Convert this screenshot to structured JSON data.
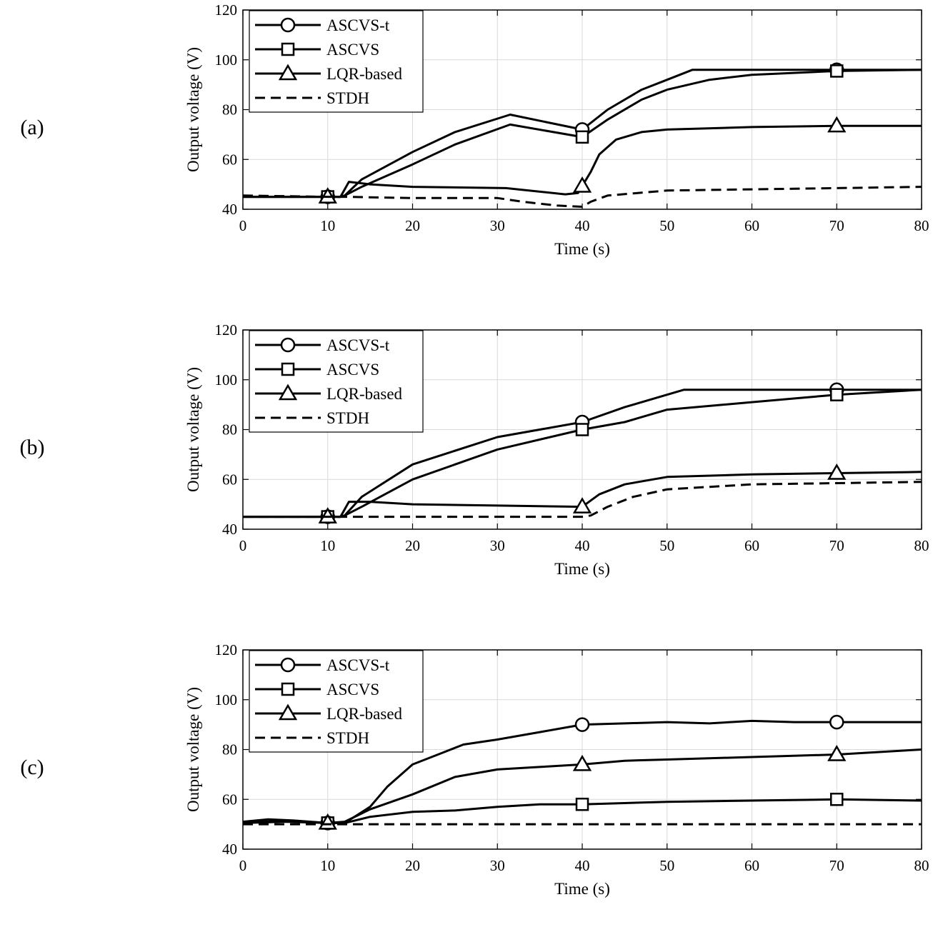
{
  "chart_data": [
    {
      "type": "line",
      "panel_label": "(a)",
      "xlabel": "Time (s)",
      "ylabel": "Output voltage (V)",
      "xlim": [
        0,
        80
      ],
      "ylim": [
        40,
        120
      ],
      "xticks": [
        0,
        10,
        20,
        30,
        40,
        50,
        60,
        70,
        80
      ],
      "yticks": [
        40,
        60,
        80,
        100,
        120
      ],
      "grid": true,
      "legend_position": "top-left",
      "series": [
        {
          "name": "ASCVS-t",
          "marker": "circle",
          "style": "solid",
          "x": [
            0,
            10,
            11.5,
            12,
            14,
            20,
            25,
            31.5,
            40,
            43,
            47,
            50,
            53,
            60,
            70,
            80
          ],
          "y": [
            45,
            45,
            45,
            45.5,
            52,
            63,
            71,
            78,
            72,
            80,
            88,
            92,
            96,
            96,
            96,
            96
          ],
          "markers_at": [
            10,
            40,
            70
          ]
        },
        {
          "name": "ASCVS",
          "marker": "square",
          "style": "solid",
          "x": [
            0,
            10,
            11.5,
            12,
            14,
            20,
            25,
            31.5,
            40,
            43,
            47,
            50,
            55,
            60,
            70,
            80
          ],
          "y": [
            45,
            45,
            45,
            45.5,
            49,
            58,
            66,
            74,
            69,
            76,
            84,
            88,
            92,
            94,
            95.5,
            96
          ],
          "markers_at": [
            10,
            40,
            70
          ]
        },
        {
          "name": "LQR-based",
          "marker": "triangle",
          "style": "solid",
          "x": [
            0,
            10,
            11.5,
            12.5,
            15,
            20,
            31,
            38,
            39.5,
            41,
            42,
            44,
            47,
            50,
            60,
            70,
            80
          ],
          "y": [
            45,
            45,
            45,
            51,
            50,
            49,
            48.5,
            46,
            46.5,
            55,
            62,
            68,
            71,
            72,
            73,
            73.5,
            73.5
          ],
          "markers_at": [
            10,
            40,
            70
          ]
        },
        {
          "name": "STDH",
          "marker": "none",
          "style": "dashed",
          "x": [
            0,
            10,
            12,
            20,
            30,
            33,
            37,
            40,
            41,
            43,
            50,
            60,
            70,
            80
          ],
          "y": [
            45.5,
            45,
            45,
            44.5,
            44.5,
            43,
            41.5,
            41,
            43,
            45.5,
            47.5,
            48,
            48.5,
            49
          ],
          "markers_at": []
        }
      ]
    },
    {
      "type": "line",
      "panel_label": "(b)",
      "xlabel": "Time (s)",
      "ylabel": "Output voltage (V)",
      "xlim": [
        0,
        80
      ],
      "ylim": [
        40,
        120
      ],
      "xticks": [
        0,
        10,
        20,
        30,
        40,
        50,
        60,
        70,
        80
      ],
      "yticks": [
        40,
        60,
        80,
        100,
        120
      ],
      "grid": true,
      "legend_position": "top-left",
      "series": [
        {
          "name": "ASCVS-t",
          "marker": "circle",
          "style": "solid",
          "x": [
            0,
            10,
            11.5,
            12,
            14,
            20,
            30,
            40,
            45,
            52,
            60,
            70,
            80
          ],
          "y": [
            45,
            45,
            45,
            45.5,
            53,
            66,
            77,
            83,
            89,
            96,
            96,
            96,
            96
          ],
          "markers_at": [
            10,
            40,
            70
          ]
        },
        {
          "name": "ASCVS",
          "marker": "square",
          "style": "solid",
          "x": [
            0,
            10,
            11.5,
            12,
            14,
            20,
            30,
            40,
            45,
            50,
            60,
            70,
            80
          ],
          "y": [
            45,
            45,
            45,
            45.5,
            49,
            60,
            72,
            80,
            83,
            88,
            91,
            94,
            96
          ],
          "markers_at": [
            10,
            40,
            70
          ]
        },
        {
          "name": "LQR-based",
          "marker": "triangle",
          "style": "solid",
          "x": [
            0,
            10,
            11.5,
            12.5,
            15,
            20,
            30,
            40,
            42,
            45,
            50,
            60,
            70,
            80
          ],
          "y": [
            45,
            45,
            45,
            51,
            51,
            50,
            49.5,
            49,
            54,
            58,
            61,
            62,
            62.5,
            63
          ],
          "markers_at": [
            10,
            40,
            70
          ]
        },
        {
          "name": "STDH",
          "marker": "none",
          "style": "dashed",
          "x": [
            0,
            10,
            12,
            20,
            30,
            40,
            41,
            43,
            46,
            50,
            55,
            60,
            70,
            80
          ],
          "y": [
            45,
            45,
            45,
            45,
            45,
            45,
            45.5,
            49,
            53,
            56,
            57,
            58,
            58.5,
            59
          ],
          "markers_at": []
        }
      ]
    },
    {
      "type": "line",
      "panel_label": "(c)",
      "xlabel": "Time (s)",
      "ylabel": "Output voltage (V)",
      "xlim": [
        0,
        80
      ],
      "ylim": [
        40,
        120
      ],
      "xticks": [
        0,
        10,
        20,
        30,
        40,
        50,
        60,
        70,
        80
      ],
      "yticks": [
        40,
        60,
        80,
        100,
        120
      ],
      "grid": true,
      "legend_position": "top-left",
      "series": [
        {
          "name": "ASCVS-t",
          "marker": "circle",
          "style": "solid",
          "x": [
            0,
            3,
            6,
            10,
            12,
            15,
            17,
            20,
            23,
            26,
            30,
            35,
            40,
            45,
            50,
            55,
            60,
            65,
            70,
            75,
            80
          ],
          "y": [
            51,
            52,
            51.5,
            50.5,
            50.5,
            57,
            65,
            74,
            78,
            82,
            84,
            87,
            90,
            90.5,
            91,
            90.5,
            91.5,
            91,
            91,
            91,
            91
          ],
          "markers_at": [
            10,
            40,
            70
          ]
        },
        {
          "name": "ASCVS",
          "marker": "square",
          "style": "solid",
          "x": [
            0,
            5,
            10,
            12,
            15,
            20,
            25,
            30,
            35,
            40,
            45,
            50,
            60,
            70,
            80
          ],
          "y": [
            50.5,
            51.5,
            50.5,
            50.5,
            53,
            55,
            55.5,
            57,
            58,
            58,
            58.5,
            59,
            59.5,
            60,
            59.5
          ],
          "markers_at": [
            10,
            40,
            70
          ]
        },
        {
          "name": "LQR-based",
          "marker": "triangle",
          "style": "solid",
          "x": [
            0,
            5,
            10,
            12,
            15,
            20,
            25,
            30,
            35,
            40,
            45,
            50,
            60,
            70,
            75,
            80
          ],
          "y": [
            50.5,
            51,
            50.5,
            51,
            56,
            62,
            69,
            72,
            73,
            74,
            75.5,
            76,
            77,
            78,
            79,
            80
          ],
          "markers_at": [
            10,
            40,
            70
          ]
        },
        {
          "name": "STDH",
          "marker": "none",
          "style": "dashed",
          "x": [
            0,
            10,
            20,
            30,
            40,
            50,
            60,
            70,
            80
          ],
          "y": [
            50,
            50,
            50,
            50,
            50,
            50,
            50,
            50,
            50
          ],
          "markers_at": []
        }
      ]
    }
  ]
}
